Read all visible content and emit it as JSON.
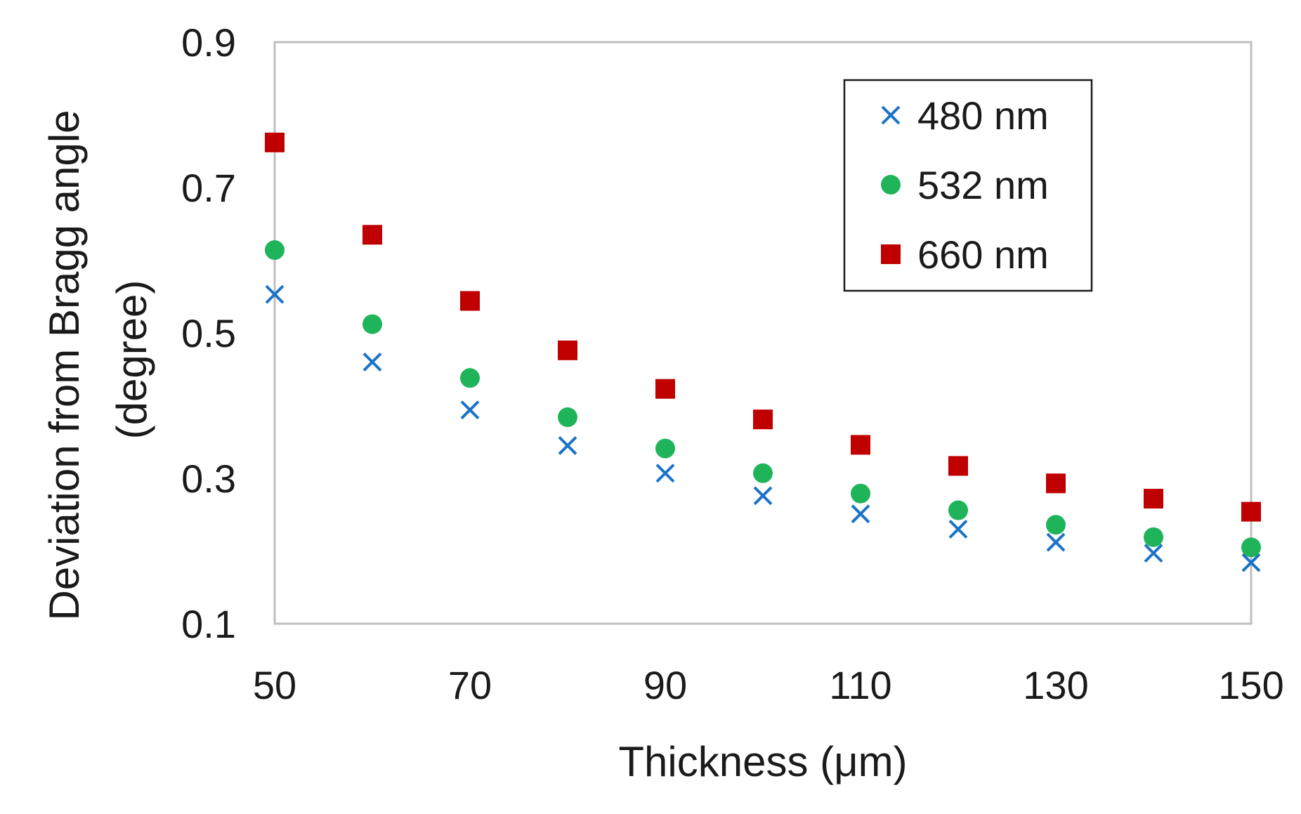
{
  "chart_data": {
    "type": "scatter",
    "title": "",
    "xlabel": "Thickness (μm)",
    "ylabel_line1": "Deviation from Bragg angle",
    "ylabel_line2": "(degree)",
    "xlim": [
      50,
      150
    ],
    "ylim": [
      0.1,
      0.9
    ],
    "xticks": [
      50,
      70,
      90,
      110,
      130,
      150
    ],
    "xtick_labels": [
      "50",
      "70",
      "90",
      "110",
      "130",
      "150"
    ],
    "yticks": [
      0.1,
      0.3,
      0.5,
      0.7,
      0.9
    ],
    "ytick_labels": [
      "0.1",
      "0.3",
      "0.5",
      "0.7",
      "0.9"
    ],
    "grid": false,
    "legend_position": "top-right",
    "x": [
      50,
      60,
      70,
      80,
      90,
      100,
      110,
      120,
      130,
      140,
      150
    ],
    "series": [
      {
        "name": "480 nm",
        "marker": "x",
        "color": "#1a73c8",
        "values": [
          0.553,
          0.46,
          0.394,
          0.345,
          0.307,
          0.276,
          0.251,
          0.23,
          0.212,
          0.197,
          0.184
        ]
      },
      {
        "name": "532 nm",
        "marker": "circle",
        "color": "#1fb45a",
        "values": [
          0.614,
          0.512,
          0.438,
          0.384,
          0.341,
          0.307,
          0.279,
          0.256,
          0.236,
          0.219,
          0.205
        ]
      },
      {
        "name": "660 nm",
        "marker": "square",
        "color": "#c00000",
        "values": [
          0.762,
          0.635,
          0.544,
          0.476,
          0.423,
          0.381,
          0.346,
          0.317,
          0.293,
          0.272,
          0.254
        ]
      }
    ]
  }
}
